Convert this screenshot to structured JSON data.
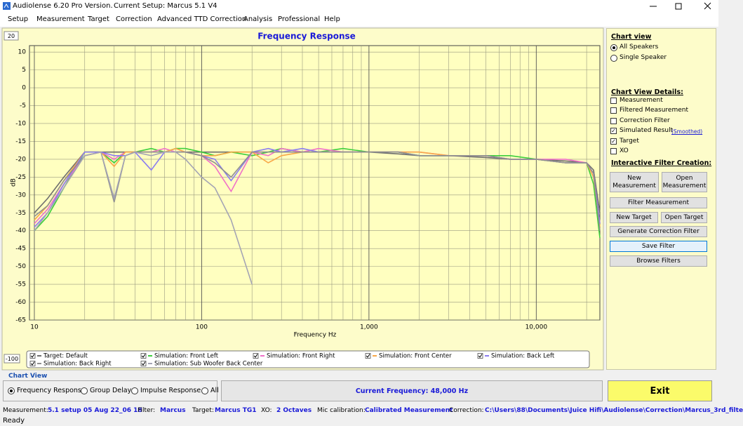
{
  "title_bar": {
    "app": "Audiolense 6.20 Pro Version.",
    "setup": "Current Setup: Marcus 5.1 V4"
  },
  "menu": [
    "Setup",
    "Measurement",
    "Target",
    "Correction",
    "Advanced TTD Correction",
    "Analysis",
    "Professional",
    "Help"
  ],
  "chart_controls": {
    "top_scale": "20",
    "bottom_scale": "-100"
  },
  "chart_data": {
    "type": "line",
    "title": "Frequency Response",
    "xlabel": "Frequency Hz",
    "ylabel": "dB",
    "x": [
      10,
      12,
      15,
      20,
      25,
      30,
      35,
      40,
      50,
      60,
      70,
      80,
      100,
      120,
      150,
      200,
      250,
      300,
      400,
      500,
      700,
      1000,
      1500,
      2000,
      3000,
      5000,
      7000,
      10000,
      15000,
      20000,
      22000,
      24000
    ],
    "xscale": "log",
    "xlim": [
      9.35,
      24000
    ],
    "xticks": [
      10,
      100,
      {
        "value": 1000,
        "label": "1,000"
      },
      {
        "value": 10000,
        "label": "10,000"
      }
    ],
    "x_minor_ticks": [
      20,
      30,
      40,
      50,
      60,
      70,
      80,
      90,
      200,
      300,
      400,
      500,
      600,
      700,
      800,
      900,
      2000,
      3000,
      4000,
      5000,
      6000,
      7000,
      8000,
      9000,
      20000
    ],
    "ylim": [
      -65,
      11.8
    ],
    "yticks": [
      10,
      5,
      0,
      -5,
      -10,
      -15,
      -20,
      -25,
      -30,
      -35,
      -40,
      -45,
      -50,
      -55,
      -60,
      -65
    ],
    "grid": true,
    "series": [
      {
        "name": "Target: Default",
        "color": "#6e6e6e",
        "values": [
          -35,
          -31,
          -25,
          -18,
          -18,
          -18,
          -18,
          -18,
          -18,
          -18,
          -18,
          -18,
          -18,
          -18,
          -18,
          -18,
          -18,
          -18,
          -18,
          -18,
          -18,
          -18,
          -18.5,
          -19,
          -19,
          -19.5,
          -20,
          -20,
          -20.5,
          -21,
          -23,
          -35
        ]
      },
      {
        "name": "Simulation: Front Left",
        "color": "#3ccf3c",
        "values": [
          -40,
          -36,
          -28,
          -18,
          -18,
          -21,
          -18,
          -18,
          -17,
          -18,
          -17,
          -17,
          -18,
          -19,
          -18,
          -19,
          -18,
          -17,
          -18,
          -18,
          -17,
          -18,
          -18,
          -19,
          -19,
          -19,
          -19,
          -20,
          -21,
          -21,
          -27,
          -42
        ]
      },
      {
        "name": "Simulation: Front Right",
        "color": "#f070c8",
        "values": [
          -38,
          -34,
          -27,
          -19,
          -18,
          -20,
          -18,
          -18,
          -18,
          -17,
          -18,
          -18,
          -19,
          -22,
          -29,
          -18,
          -19,
          -17,
          -18,
          -17,
          -18,
          -18,
          -18,
          -18,
          -19,
          -19,
          -20,
          -20,
          -20,
          -21,
          -24,
          -38
        ]
      },
      {
        "name": "Simulation: Front Center",
        "color": "#f8a848",
        "values": [
          -37,
          -33,
          -26,
          -18,
          -18,
          -22,
          -18,
          -18,
          -18,
          -18,
          -17,
          -18,
          -19,
          -19,
          -18,
          -18,
          -21,
          -19,
          -18,
          -18,
          -18,
          -18,
          -18,
          -18,
          -19,
          -19,
          -20,
          -20,
          -21,
          -21,
          -25,
          -39
        ]
      },
      {
        "name": "Simulation: Back Left",
        "color": "#8a7cf0",
        "values": [
          -39,
          -35,
          -27,
          -18,
          -18,
          -19,
          -19,
          -18,
          -23,
          -18,
          -18,
          -18,
          -19,
          -20,
          -26,
          -18,
          -17,
          -18,
          -17,
          -18,
          -18,
          -18,
          -18,
          -19,
          -19,
          -19,
          -20,
          -20,
          -21,
          -21,
          -24,
          -38
        ]
      },
      {
        "name": "Simulation: Back Right",
        "color": "#909090",
        "values": [
          -36,
          -33,
          -26,
          -19,
          -18,
          -32,
          -19,
          -18,
          -18,
          -18,
          -18,
          -18,
          -19,
          -21,
          -25,
          -18,
          -18,
          -18,
          -18,
          -18,
          -18,
          -18,
          -18,
          -19,
          -19,
          -19,
          -20,
          -20,
          -21,
          -21,
          -24,
          -40
        ]
      },
      {
        "name": "Simulation: Sub Woofer Back Center",
        "color": "#a4a4b4",
        "values": [
          -40,
          -35,
          -28,
          -19,
          -18,
          -31,
          -19,
          -18,
          -19,
          -18,
          -18,
          -20,
          -25,
          -28,
          -37,
          -55,
          null,
          null,
          null,
          null,
          null,
          null,
          null,
          null,
          null,
          null,
          null,
          null,
          null,
          null,
          null,
          null
        ]
      }
    ]
  },
  "right_panel": {
    "chart_view": {
      "heading": "Chart view",
      "options": [
        "All Speakers",
        "Single Speaker"
      ],
      "checked": [
        true,
        false
      ]
    },
    "details": {
      "heading": "Chart View Details:",
      "items": [
        "Measurement",
        "Filtered Measurement",
        "Correction Filter",
        "Simulated Result",
        "Target",
        "XO"
      ],
      "checked": [
        false,
        false,
        false,
        true,
        true,
        false
      ],
      "smoothed_link": "(Smoothed)"
    },
    "filter_creation": {
      "heading": "Interactive Filter Creation:",
      "buttons": [
        "New Measurement",
        "Open Measurement",
        "Filter Measurement",
        "New Target",
        "Open Target",
        "Generate Correction Filter",
        "Save Filter",
        "Browse Filters"
      ]
    }
  },
  "bottom": {
    "chart_view_label": "Chart View",
    "view_options": [
      "Frequency Response",
      "Group Delay",
      "Impulse Response",
      "All"
    ],
    "view_checked": [
      true,
      false,
      false,
      false
    ],
    "current_frequency": "Current Frequency: 48,000 Hz",
    "exit": "Exit"
  },
  "status_bar": {
    "items": [
      {
        "label": "Measurement:",
        "value": "5.1 setup 05 Aug 22_06 18"
      },
      {
        "label": "Filter:",
        "value": "Marcus"
      },
      {
        "label": "Target:",
        "value": "Marcus TG1"
      },
      {
        "label": "XO:",
        "value": "2 Octaves"
      },
      {
        "label": "Mic calibration:",
        "value": "Calibrated Measurement"
      },
      {
        "label": "Correction:",
        "value": "C:\\Users\\88\\Documents\\Juice Hifi\\Audiolense\\Correction\\Marcus_3rd_filte"
      }
    ],
    "state": "Ready"
  }
}
